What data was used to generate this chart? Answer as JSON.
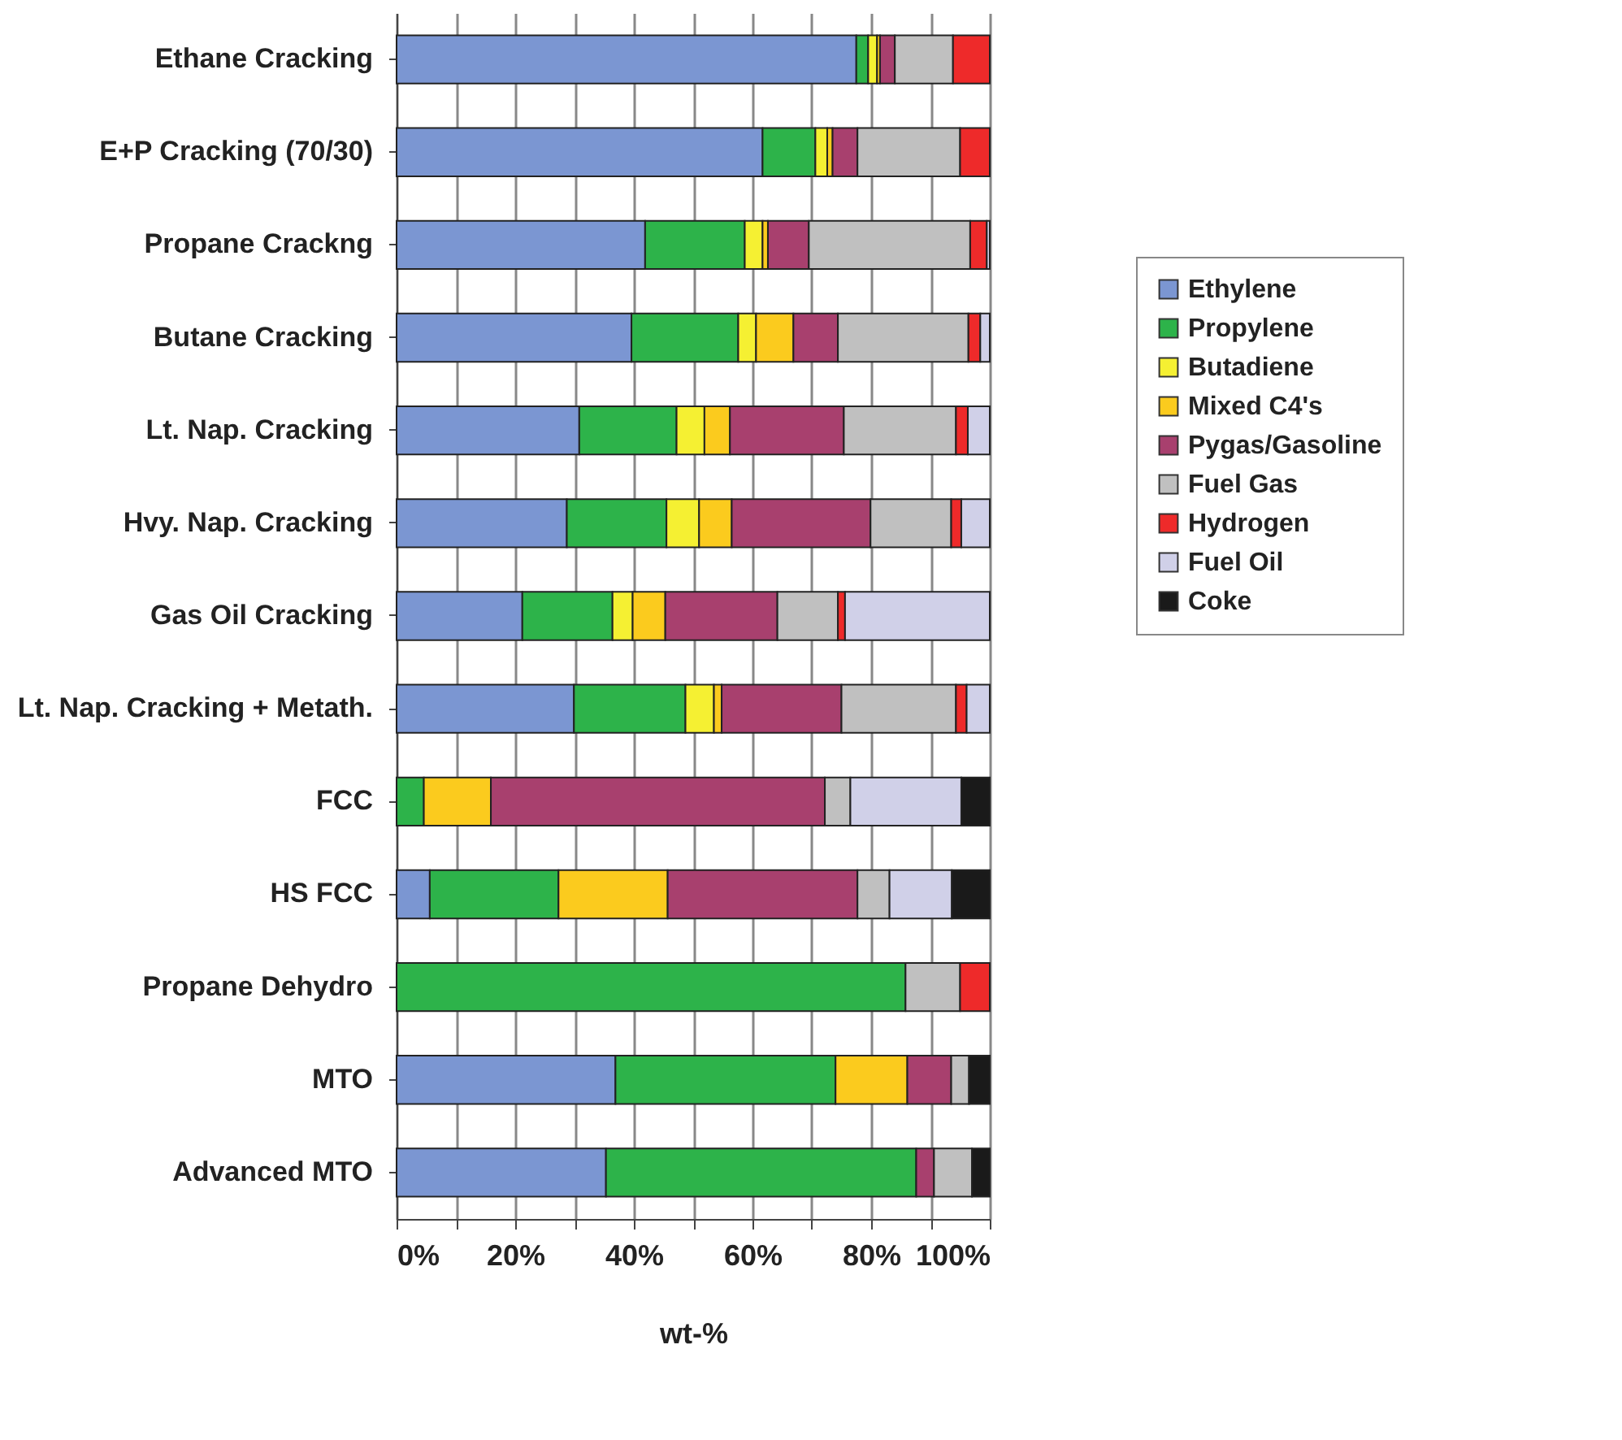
{
  "chart_data": {
    "type": "bar",
    "orientation": "horizontal",
    "stacked": true,
    "xlabel": "wt-%",
    "categories": [
      "Ethane Cracking",
      "E+P Cracking (70/30)",
      "Propane Crackng",
      "Butane Cracking",
      "Lt. Nap. Cracking",
      "Hvy. Nap. Cracking",
      "Gas Oil Cracking",
      "Lt. Nap. Cracking + Metath.",
      "FCC",
      "HS FCC",
      "Propane Dehydro",
      "MTO",
      "Advanced MTO"
    ],
    "series": [
      {
        "name": "Ethylene",
        "color": "#7b96d2",
        "values": [
          77.5,
          61.7,
          41.9,
          39.6,
          30.8,
          28.7,
          21.2,
          29.9,
          0,
          5.6,
          0,
          36.9,
          35.3
        ]
      },
      {
        "name": "Propylene",
        "color": "#2db34a",
        "values": [
          2,
          8.9,
          16.8,
          18,
          16.4,
          16.8,
          15.2,
          18.8,
          4.6,
          21.7,
          85.8,
          37.1,
          52.3
        ]
      },
      {
        "name": "Butadiene",
        "color": "#f5f032",
        "values": [
          1.5,
          2,
          3,
          3,
          4.7,
          5.5,
          3.4,
          4.8,
          0,
          0,
          0,
          0,
          0
        ]
      },
      {
        "name": "Mixed C4's",
        "color": "#fbcb1e",
        "values": [
          0.5,
          0.9,
          0.9,
          6.3,
          4.3,
          5.5,
          5.5,
          1.3,
          11.3,
          18.4,
          0,
          12.1,
          0
        ]
      },
      {
        "name": "Pygas/Gasoline",
        "color": "#a8406e",
        "values": [
          2.5,
          4.2,
          6.9,
          7.5,
          19.2,
          23.4,
          18.9,
          20.2,
          56.3,
          32,
          0,
          7.4,
          3
        ]
      },
      {
        "name": "Fuel Gas",
        "color": "#c0c0c0",
        "values": [
          9.8,
          17.3,
          27.2,
          22,
          18.9,
          13.6,
          10.2,
          19.3,
          4.3,
          5.4,
          9.2,
          3,
          6.4
        ]
      },
      {
        "name": "Hydrogen",
        "color": "#ee2a2a",
        "values": [
          6.2,
          5,
          2.8,
          2,
          2,
          1.7,
          1.2,
          1.8,
          0,
          0,
          5,
          0,
          0
        ]
      },
      {
        "name": "Fuel Oil",
        "color": "#d0d0e8",
        "values": [
          0,
          0,
          0.5,
          1.6,
          3.7,
          4.8,
          24.4,
          3.9,
          18.7,
          10.5,
          0,
          0,
          0
        ]
      },
      {
        "name": "Coke",
        "color": "#1a1a1a",
        "values": [
          0,
          0,
          0,
          0,
          0,
          0,
          0,
          0,
          4.8,
          6.4,
          0,
          3.5,
          3
        ]
      }
    ],
    "xlim": [
      0,
      100
    ],
    "xticks": [
      {
        "value": 0,
        "label": "0%"
      },
      {
        "value": 10,
        "label": null
      },
      {
        "value": 20,
        "label": "20%"
      },
      {
        "value": 30,
        "label": null
      },
      {
        "value": 40,
        "label": "40%"
      },
      {
        "value": 50,
        "label": null
      },
      {
        "value": 60,
        "label": "60%"
      },
      {
        "value": 70,
        "label": null
      },
      {
        "value": 80,
        "label": "80%"
      },
      {
        "value": 90,
        "label": null
      },
      {
        "value": 100,
        "label": "100%"
      }
    ],
    "grid": "x",
    "legend": "right"
  }
}
